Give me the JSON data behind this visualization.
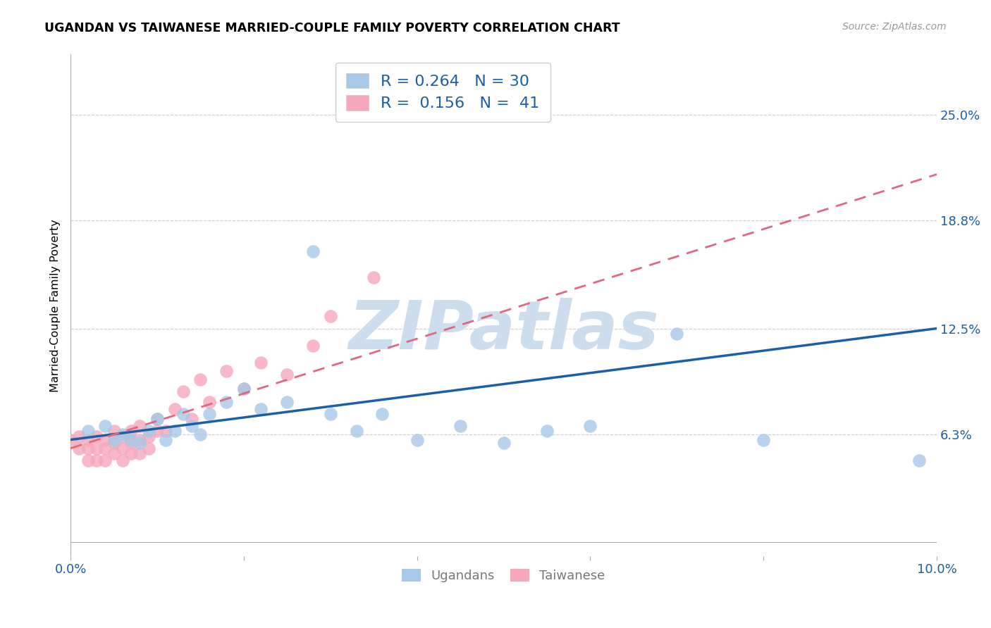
{
  "title": "UGANDAN VS TAIWANESE MARRIED-COUPLE FAMILY POVERTY CORRELATION CHART",
  "source": "Source: ZipAtlas.com",
  "ylabel": "Married-Couple Family Poverty",
  "xlim": [
    0.0,
    0.1
  ],
  "ylim": [
    -0.008,
    0.285
  ],
  "xtick_positions": [
    0.0,
    0.02,
    0.04,
    0.06,
    0.08,
    0.1
  ],
  "xticklabels": [
    "0.0%",
    "",
    "",
    "",
    "",
    "10.0%"
  ],
  "ytick_positions": [
    0.063,
    0.125,
    0.188,
    0.25
  ],
  "ytick_labels": [
    "6.3%",
    "12.5%",
    "18.8%",
    "25.0%"
  ],
  "ugandan_R": 0.264,
  "ugandan_N": 30,
  "taiwanese_R": 0.156,
  "taiwanese_N": 41,
  "ugandan_color": "#a8c8e8",
  "taiwanese_color": "#f5a8bc",
  "ugandan_line_color": "#1a5fa8",
  "taiwanese_line_color": "#e06880",
  "watermark": "ZIPatlas",
  "watermark_color": "#ccdded",
  "ugandan_x": [
    0.002,
    0.004,
    0.005,
    0.006,
    0.007,
    0.008,
    0.009,
    0.01,
    0.011,
    0.012,
    0.013,
    0.014,
    0.015,
    0.016,
    0.018,
    0.02,
    0.022,
    0.025,
    0.028,
    0.03,
    0.033,
    0.036,
    0.04,
    0.045,
    0.05,
    0.055,
    0.06,
    0.07,
    0.08,
    0.098
  ],
  "ugandan_y": [
    0.065,
    0.068,
    0.06,
    0.063,
    0.06,
    0.058,
    0.065,
    0.072,
    0.06,
    0.065,
    0.075,
    0.068,
    0.063,
    0.075,
    0.082,
    0.09,
    0.078,
    0.082,
    0.17,
    0.075,
    0.065,
    0.075,
    0.06,
    0.068,
    0.058,
    0.065,
    0.068,
    0.122,
    0.06,
    0.048
  ],
  "taiwanese_x": [
    0.0,
    0.001,
    0.001,
    0.002,
    0.002,
    0.002,
    0.003,
    0.003,
    0.003,
    0.004,
    0.004,
    0.004,
    0.005,
    0.005,
    0.005,
    0.006,
    0.006,
    0.006,
    0.007,
    0.007,
    0.007,
    0.008,
    0.008,
    0.008,
    0.009,
    0.009,
    0.01,
    0.01,
    0.011,
    0.012,
    0.013,
    0.014,
    0.015,
    0.016,
    0.018,
    0.02,
    0.022,
    0.025,
    0.028,
    0.03,
    0.035
  ],
  "taiwanese_y": [
    0.06,
    0.055,
    0.062,
    0.048,
    0.055,
    0.06,
    0.048,
    0.055,
    0.062,
    0.048,
    0.055,
    0.06,
    0.052,
    0.058,
    0.065,
    0.048,
    0.055,
    0.062,
    0.052,
    0.058,
    0.065,
    0.052,
    0.06,
    0.068,
    0.055,
    0.062,
    0.065,
    0.072,
    0.065,
    0.078,
    0.088,
    0.072,
    0.095,
    0.082,
    0.1,
    0.09,
    0.105,
    0.098,
    0.115,
    0.132,
    0.155
  ],
  "ug_trend_x": [
    0.0,
    0.1
  ],
  "ug_trend_y": [
    0.06,
    0.125
  ],
  "tw_trend_x": [
    0.0,
    0.1
  ],
  "tw_trend_y": [
    0.055,
    0.215
  ]
}
